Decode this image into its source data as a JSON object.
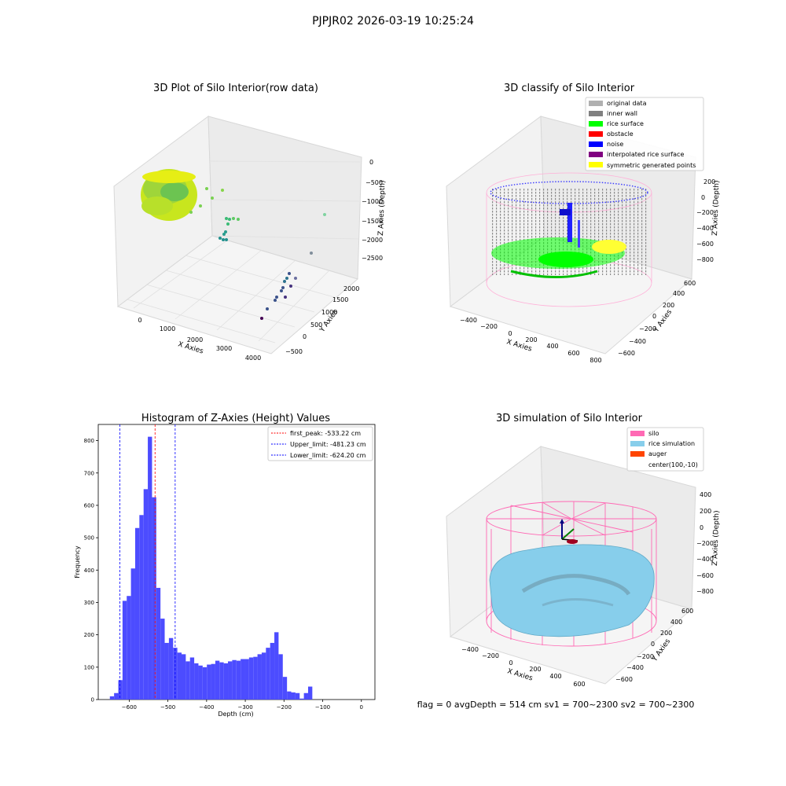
{
  "figure": {
    "suptitle": "PJPJR02 2026-03-19 10:25:24",
    "status_line": "flag = 0     avgDepth = 514 cm  sv1 = 700~2300  sv2 = 700~2300"
  },
  "colors": {
    "original_data": "#b0b0b0",
    "inner_wall": "#808080",
    "rice_surface": "#00ff00",
    "obstacle": "#ff0000",
    "noise": "#0000ff",
    "interpolated": "#800080",
    "symmetric": "#ffff00",
    "silo": "#ff69b4",
    "rice_sim": "#87ceeb",
    "auger": "#ff4500",
    "hist_bar": "#4c4cff"
  },
  "chart_data": [
    {
      "type": "scatter",
      "title": "3D Plot of Silo Interior(row data)",
      "xlabel": "X Axies",
      "ylabel": "Y Axies",
      "zlabel": "Z Axies (Depth)",
      "x_ticks": [
        "0",
        "1000",
        "2000",
        "3000",
        "4000"
      ],
      "y_ticks": [
        "−500",
        "0",
        "500",
        "1000",
        "1500",
        "2000"
      ],
      "z_ticks": [
        "0",
        "−500",
        "−1000",
        "−1500",
        "−2000",
        "−2500"
      ],
      "grid": true
    },
    {
      "type": "scatter",
      "title": "3D classify of Silo Interior",
      "xlabel": "X Axies",
      "ylabel": "Y Axies",
      "zlabel": "Z Axies (Depth)",
      "x_ticks": [
        "−400",
        "−200",
        "0",
        "200",
        "400",
        "600",
        "800"
      ],
      "y_ticks": [
        "−600",
        "−400",
        "−200",
        "0",
        "200",
        "400",
        "600"
      ],
      "z_ticks": [
        "200",
        "0",
        "−200",
        "−400",
        "−600",
        "−800"
      ],
      "legend": [
        "original data",
        "inner wall",
        "rice surface",
        "obstacle",
        "noise",
        "interpolated rice surface",
        "symmetric generated points"
      ],
      "legend_position": "top-right",
      "grid": true
    },
    {
      "type": "bar",
      "title": "Histogram of Z-Axies (Height) Values",
      "xlabel": "Depth (cm)",
      "ylabel": "Frequency",
      "xlim": [
        -680,
        35
      ],
      "ylim": [
        0,
        850
      ],
      "x_ticks": [
        -600,
        -500,
        -400,
        -300,
        -200,
        -100,
        0
      ],
      "y_ticks": [
        0,
        100,
        200,
        300,
        400,
        500,
        600,
        700,
        800
      ],
      "bin_start": -650,
      "bin_width": 10.9,
      "values": [
        10,
        20,
        60,
        305,
        320,
        405,
        530,
        570,
        650,
        812,
        625,
        345,
        250,
        175,
        190,
        160,
        145,
        140,
        118,
        130,
        112,
        105,
        100,
        108,
        110,
        120,
        115,
        112,
        118,
        122,
        120,
        125,
        125,
        130,
        132,
        140,
        145,
        160,
        175,
        208,
        140,
        70,
        25,
        22,
        20,
        3,
        20,
        40
      ],
      "lines": [
        {
          "label": "first_peak: -533.22 cm",
          "x": -533.22,
          "color": "#ff0000"
        },
        {
          "label": "Upper_limit: -481.23 cm",
          "x": -481.23,
          "color": "#0000ff"
        },
        {
          "label": "Lower_limit: -624.20 cm",
          "x": -624.2,
          "color": "#0000ff"
        }
      ],
      "legend_position": "top-right"
    },
    {
      "type": "surface",
      "title": "3D simulation of Silo Interior",
      "xlabel": "X Axies",
      "ylabel": "Y Axies",
      "zlabel": "Z Axies (Depth)",
      "x_ticks": [
        "−400",
        "−200",
        "0",
        "200",
        "400",
        "600"
      ],
      "y_ticks": [
        "−600",
        "−400",
        "−200",
        "0",
        "200",
        "400",
        "600"
      ],
      "z_ticks": [
        "400",
        "200",
        "0",
        "−200",
        "−400",
        "−600",
        "−800"
      ],
      "legend": [
        "silo",
        "rice simulation",
        "auger",
        "center(100,-10)"
      ],
      "legend_position": "top-right",
      "grid": true
    }
  ]
}
